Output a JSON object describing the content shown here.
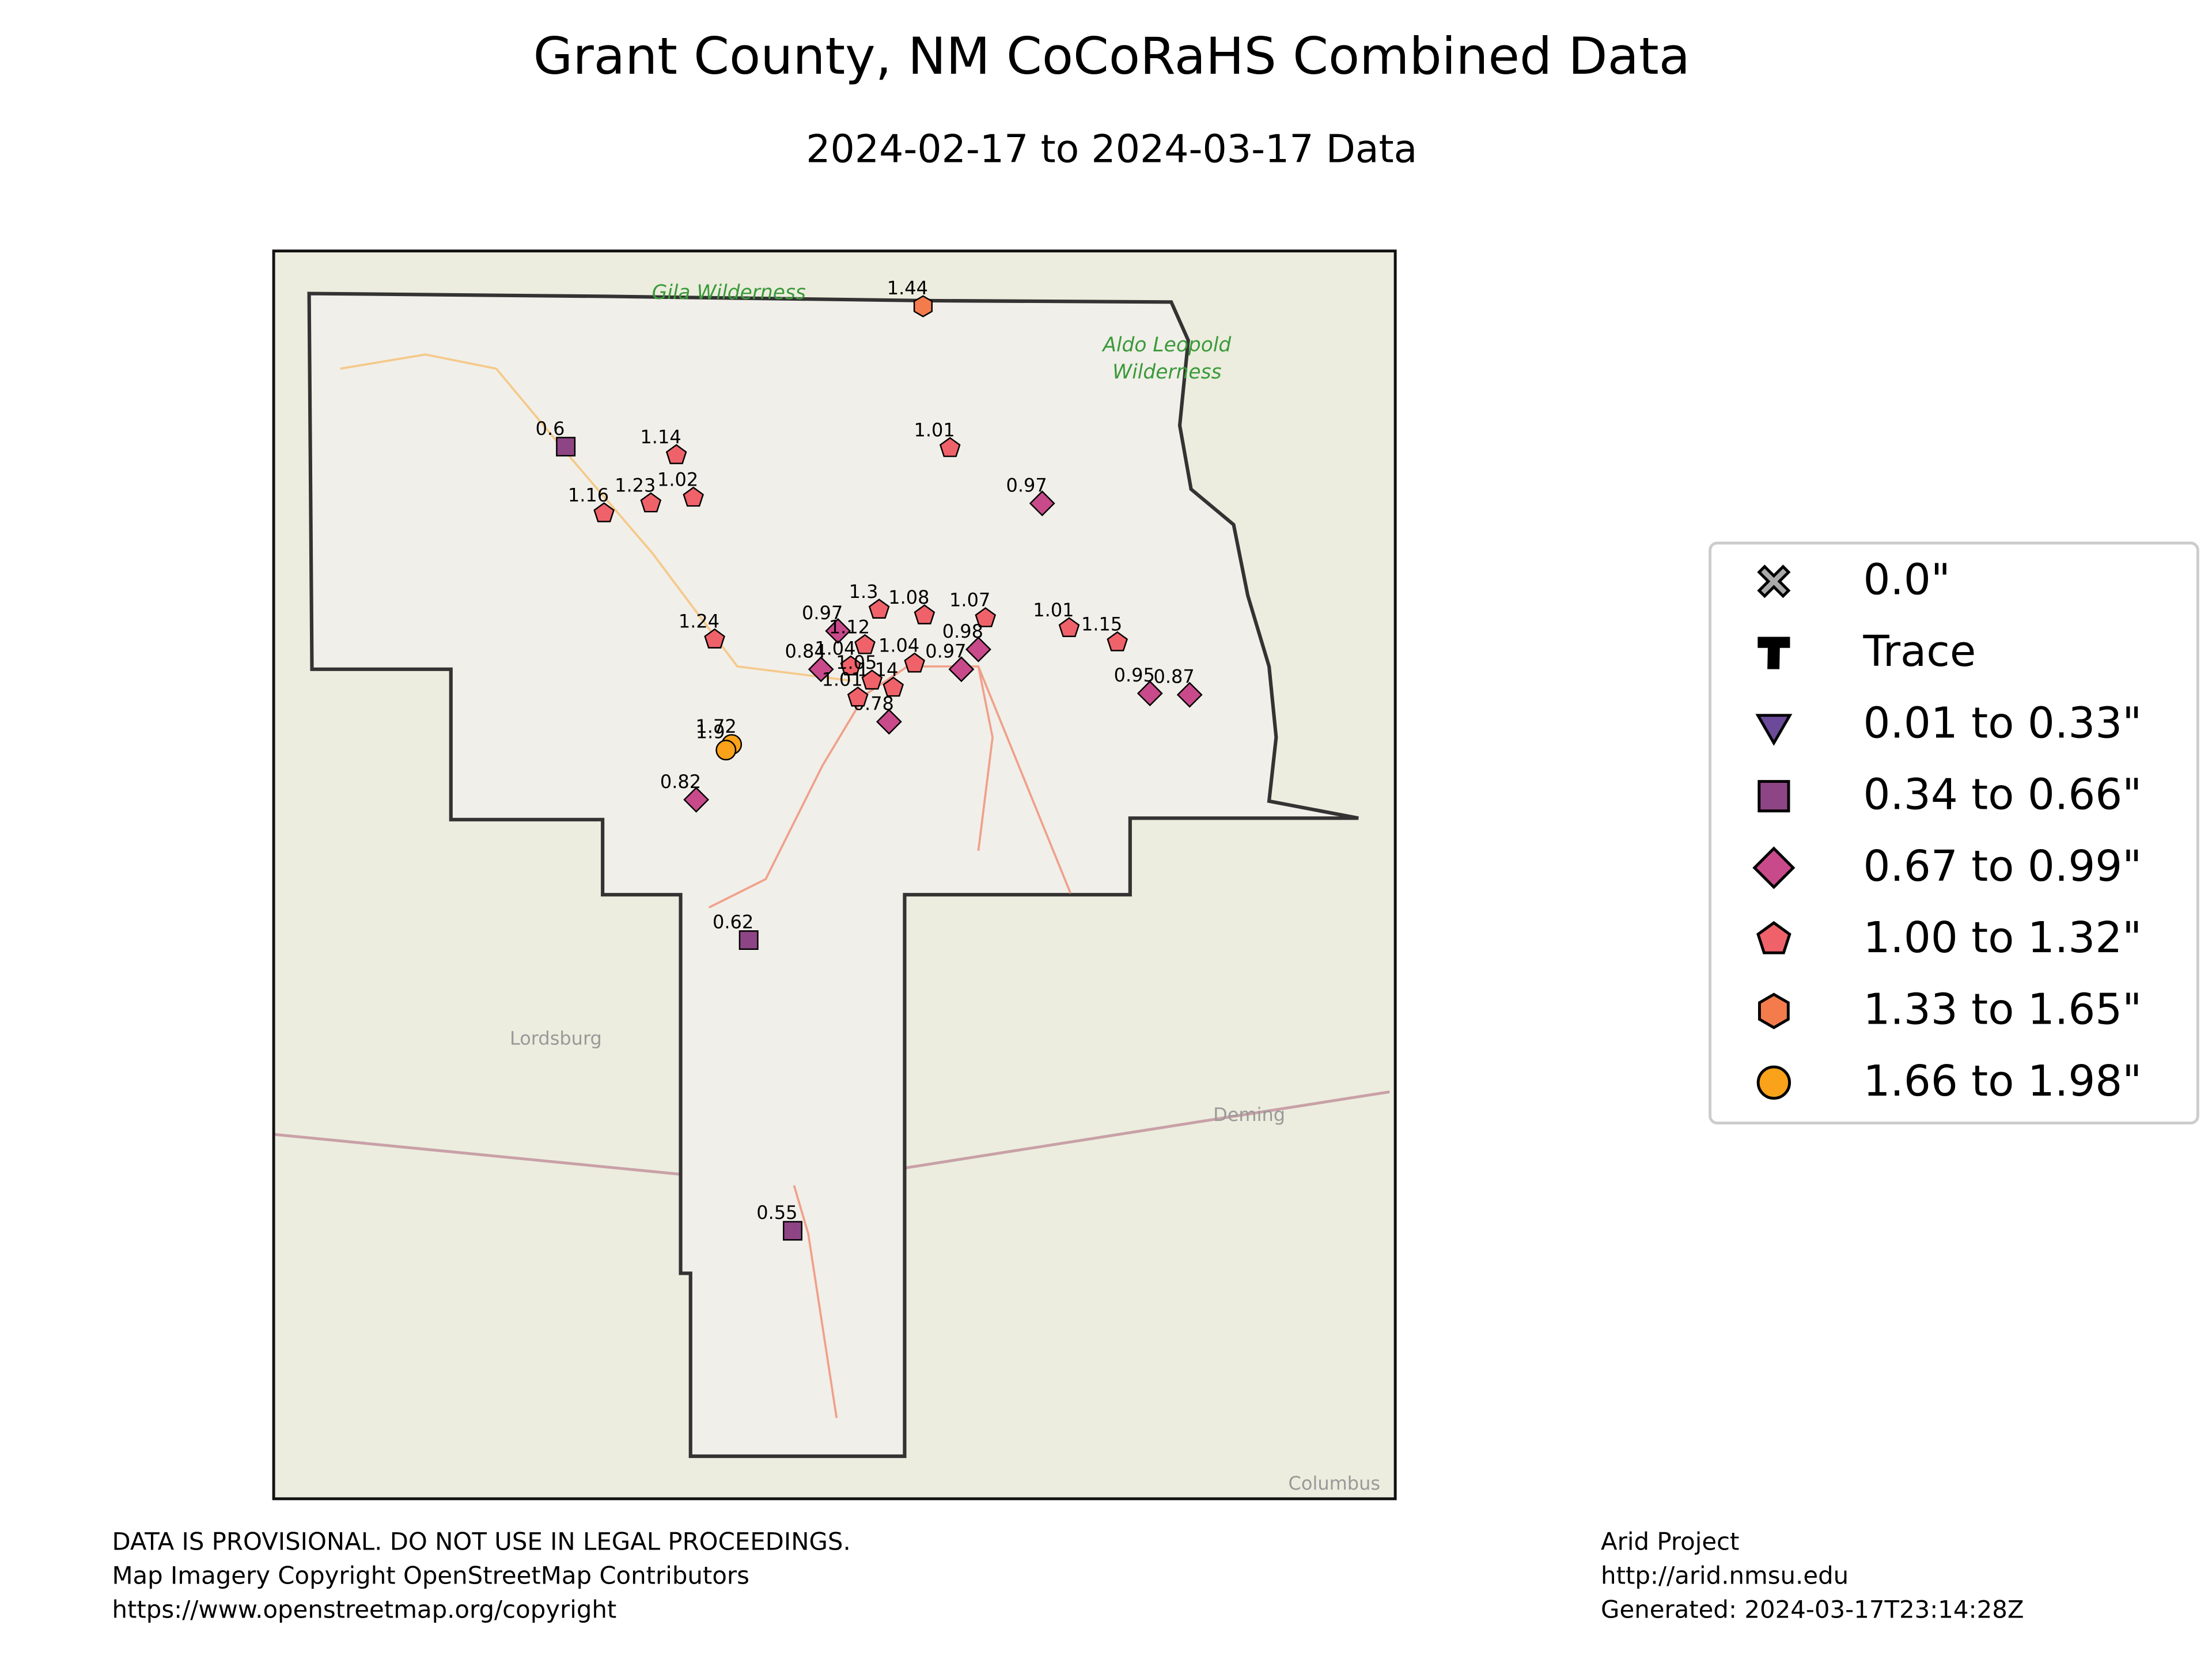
{
  "map": {
    "title": "Grant County, NM CoCoRaHS Combined Data",
    "subtitle": "2024-02-17 to 2024-03-17 Data",
    "basemap_labels": [
      "Gila Wilderness",
      "Aldo Leopold",
      "Wilderness",
      "Lordsburg",
      "Deming",
      "Columbus"
    ],
    "legend": [
      {
        "label": "0.0\"",
        "marker": "x",
        "color": "#a9a9a9"
      },
      {
        "label": "Trace",
        "marker": "T",
        "color": "#000000"
      },
      {
        "label": "0.01 to 0.33\"",
        "range": [
          0.01,
          0.33
        ],
        "marker": "triangle-down",
        "color": "#6b4a9a"
      },
      {
        "label": "0.34 to 0.66\"",
        "range": [
          0.34,
          0.66
        ],
        "marker": "square",
        "color": "#8e4585"
      },
      {
        "label": "0.67 to 0.99\"",
        "range": [
          0.67,
          0.99
        ],
        "marker": "diamond",
        "color": "#c94a8b"
      },
      {
        "label": "1.00 to 1.32\"",
        "range": [
          1.0,
          1.32
        ],
        "marker": "pentagon",
        "color": "#f0626a"
      },
      {
        "label": "1.33 to 1.65\"",
        "range": [
          1.33,
          1.65
        ],
        "marker": "hexagon",
        "color": "#f47c4c"
      },
      {
        "label": "1.66 to 1.98\"",
        "range": [
          1.66,
          1.98
        ],
        "marker": "circle",
        "color": "#f9a21a"
      }
    ],
    "stations": [
      {
        "value": 1.44
      },
      {
        "value": 0.6
      },
      {
        "value": 1.14
      },
      {
        "value": 1.01
      },
      {
        "value": 1.23
      },
      {
        "value": 1.02
      },
      {
        "value": 1.16
      },
      {
        "value": 0.97
      },
      {
        "value": 1.24
      },
      {
        "value": 1.3
      },
      {
        "value": 1.08
      },
      {
        "value": 1.07
      },
      {
        "value": 1.01
      },
      {
        "value": 1.15
      },
      {
        "value": 0.98
      },
      {
        "value": 0.97
      },
      {
        "value": 0.95
      },
      {
        "value": 0.87
      },
      {
        "value": 0.82
      },
      {
        "value": 0.62
      },
      {
        "value": 0.55
      },
      {
        "value": 1.72
      },
      {
        "value": 1.9
      },
      {
        "value": 0.84
      },
      {
        "value": 0.97
      },
      {
        "value": 1.04
      },
      {
        "value": 0.78
      },
      {
        "value": 1.14
      },
      {
        "value": 1.04
      },
      {
        "value": 1.12
      },
      {
        "value": 1.05
      },
      {
        "value": 1.01
      }
    ],
    "footer_left": [
      "DATA IS PROVISIONAL. DO NOT USE IN LEGAL PROCEEDINGS.",
      "Map Imagery Copyright OpenStreetMap Contributors",
      "https://www.openstreetmap.org/copyright"
    ],
    "footer_right": [
      "Arid Project",
      "http://arid.nmsu.edu",
      "Generated: 2024-03-17T23:14:28Z"
    ]
  }
}
